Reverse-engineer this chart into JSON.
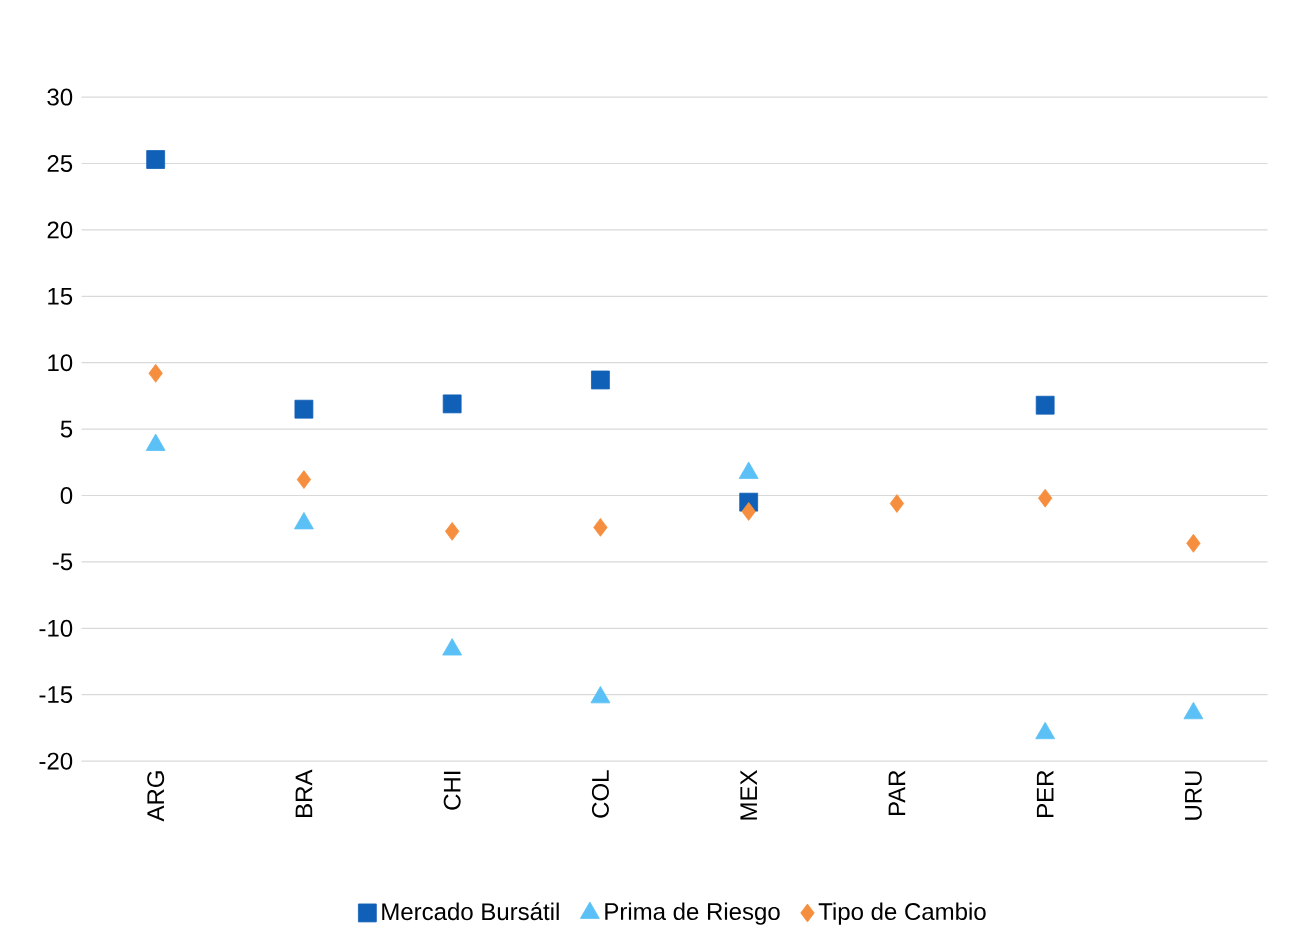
{
  "chart_data": {
    "type": "scatter",
    "categories": [
      "ARG",
      "BRA",
      "CHI",
      "COL",
      "MEX",
      "PAR",
      "PER",
      "URU"
    ],
    "series": [
      {
        "name": "Mercado Bursátil",
        "color": "#1060b8",
        "marker": "square",
        "values": [
          25.3,
          6.5,
          6.9,
          8.7,
          -0.5,
          null,
          6.8,
          null
        ]
      },
      {
        "name": "Prima de Riesgo",
        "color": "#5bc0f5",
        "marker": "triangle",
        "values": [
          3.8,
          -2.1,
          -11.6,
          -15.2,
          1.7,
          null,
          -17.9,
          -16.4
        ]
      },
      {
        "name": "Tipo de Cambio",
        "color": "#f58f3f",
        "marker": "diamond",
        "values": [
          9.2,
          1.2,
          -2.7,
          -2.4,
          -1.2,
          -0.6,
          -0.2,
          -3.6
        ]
      }
    ],
    "ylim": [
      -20,
      30
    ],
    "yticks": [
      -20,
      -15,
      -10,
      -5,
      0,
      5,
      10,
      15,
      20,
      25,
      30
    ],
    "grid": "y",
    "legend": "bottom"
  }
}
